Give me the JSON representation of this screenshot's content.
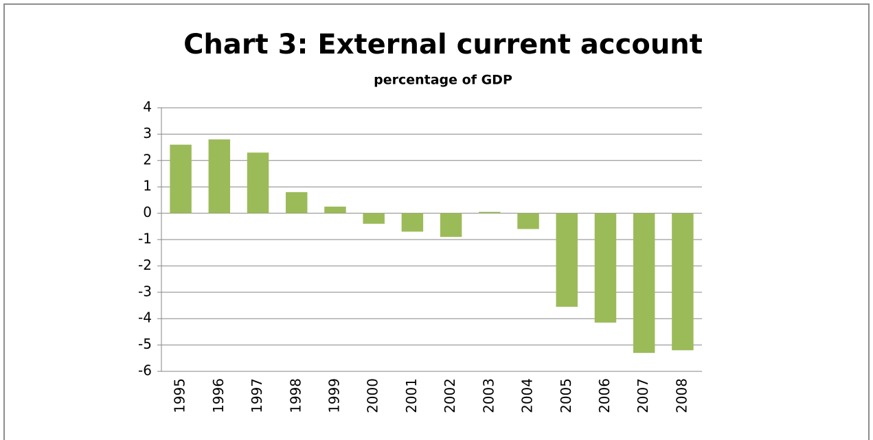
{
  "chart_data": {
    "type": "bar",
    "title": "Chart 3: External current account",
    "subtitle": "percentage of GDP",
    "categories": [
      "1995",
      "1996",
      "1997",
      "1998",
      "1999",
      "2000",
      "2001",
      "2002",
      "2003",
      "2004",
      "2005",
      "2006",
      "2007",
      "2008"
    ],
    "values": [
      2.6,
      2.8,
      2.3,
      0.8,
      0.25,
      -0.4,
      -0.7,
      -0.9,
      0.05,
      -0.6,
      -3.55,
      -4.15,
      -5.3,
      -5.2
    ],
    "color": "#9bbb59",
    "ylim": [
      -6,
      4
    ],
    "yticks": [
      -6,
      -5,
      -4,
      -3,
      -2,
      -1,
      0,
      1,
      2,
      3,
      4
    ],
    "grid": true
  }
}
